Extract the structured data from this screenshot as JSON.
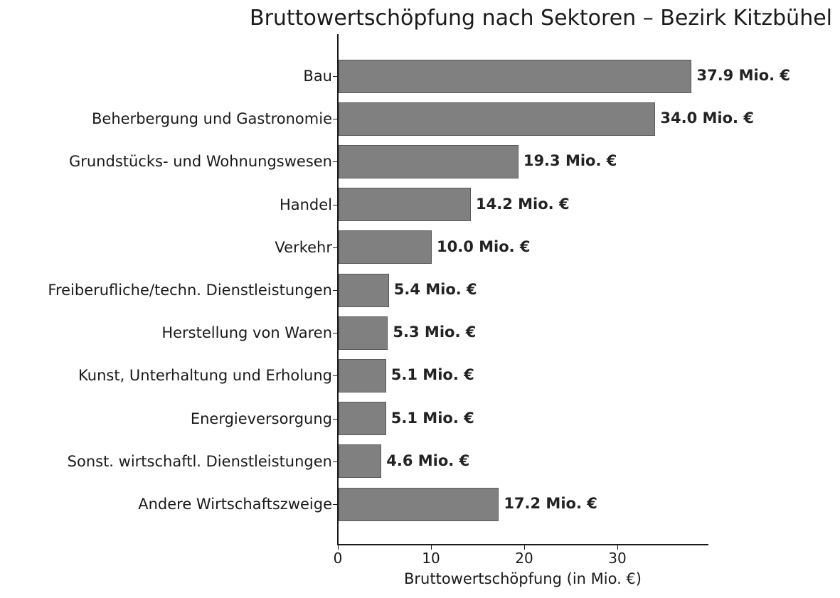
{
  "chart_data": {
    "type": "bar",
    "orientation": "horizontal",
    "title": "Bruttowertschöpfung nach Sektoren – Bezirk Kitzbühel",
    "xlabel": "Bruttowertschöpfung (in Mio. €)",
    "ylabel": "",
    "xlim": [
      0,
      39.8
    ],
    "xticks": [
      "0",
      "10",
      "20",
      "30"
    ],
    "grid": false,
    "legend": null,
    "bar_color": "#808080",
    "categories": [
      "Bau",
      "Beherbergung und Gastronomie",
      "Grundstücks- und Wohnungswesen",
      "Handel",
      "Verkehr",
      "Freiberufliche/techn. Dienstleistungen",
      "Herstellung von Waren",
      "Kunst, Unterhaltung und Erholung",
      "Energieversorgung",
      "Sonst. wirtschaftl. Dienstleistungen",
      "Andere Wirtschaftszweige"
    ],
    "values": [
      37.9,
      34.0,
      19.3,
      14.2,
      10.0,
      5.4,
      5.3,
      5.1,
      5.1,
      4.6,
      17.2
    ],
    "data_labels": [
      "37.9 Mio. €",
      "34.0 Mio. €",
      "19.3 Mio. €",
      "14.2 Mio. €",
      "10.0 Mio. €",
      "5.4 Mio. €",
      "5.3 Mio. €",
      "5.1 Mio. €",
      "5.1 Mio. €",
      "4.6 Mio. €",
      "17.2 Mio. €"
    ]
  }
}
